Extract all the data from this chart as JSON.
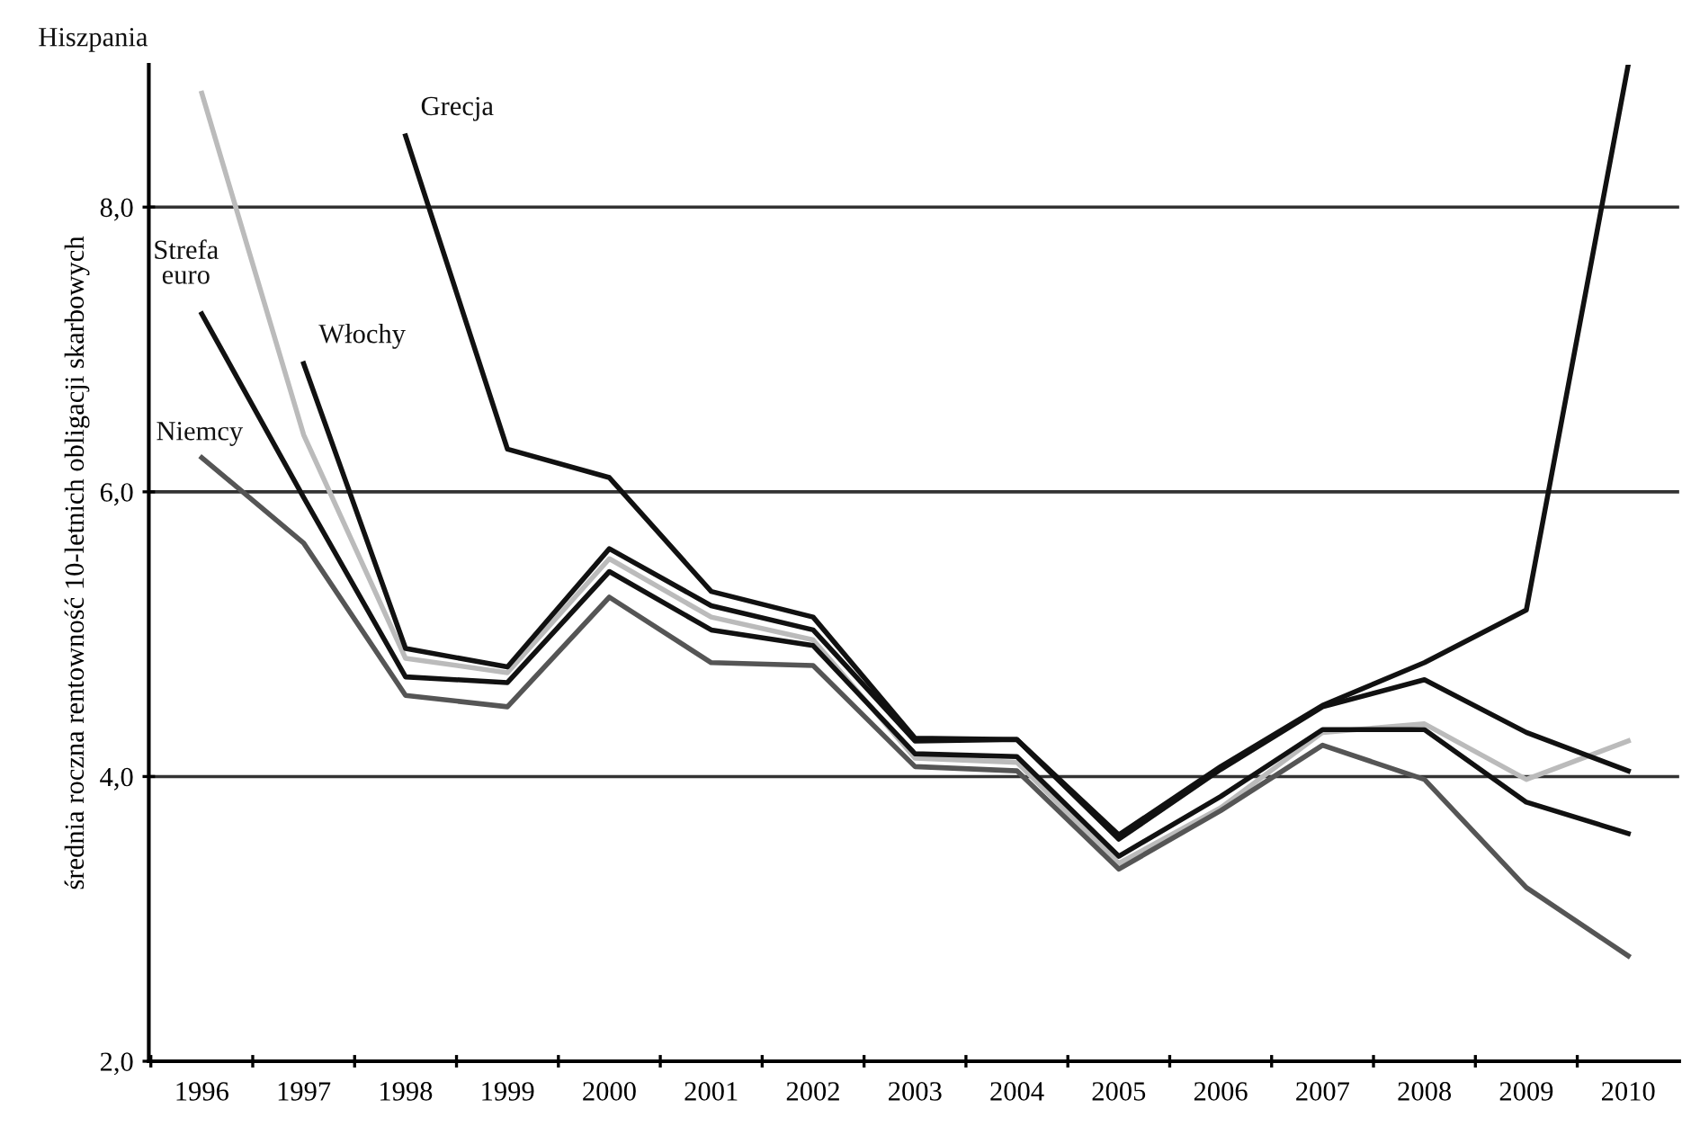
{
  "chart_data": {
    "type": "line",
    "ylabel": "średnia roczna rentowność 10-letnich obligacji skarbowych",
    "categories": [
      "1996",
      "1997",
      "1998",
      "1999",
      "2000",
      "2001",
      "2002",
      "2003",
      "2004",
      "2005",
      "2006",
      "2007",
      "2008",
      "2009",
      "2010"
    ],
    "ylim": [
      2,
      9
    ],
    "yticks": [
      {
        "value": 2,
        "label": "2,0"
      },
      {
        "value": 4,
        "label": "4,0"
      },
      {
        "value": 6,
        "label": "6,0"
      },
      {
        "value": 8,
        "label": "8,0"
      }
    ],
    "grid": "y",
    "legend": false,
    "marker": "none",
    "line_style": "solid",
    "series": [
      {
        "name": "Hiszpania",
        "color": "#bbbbbb",
        "values": [
          8.8,
          6.4,
          4.83,
          4.73,
          5.53,
          5.12,
          4.96,
          4.13,
          4.1,
          3.39,
          3.78,
          4.31,
          4.37,
          3.98,
          4.25
        ]
      },
      {
        "name": "Włochy",
        "color": "#111111",
        "values": [
          null,
          6.9,
          4.9,
          4.77,
          5.6,
          5.2,
          5.03,
          4.25,
          4.26,
          3.56,
          4.05,
          4.49,
          4.68,
          4.31,
          4.04
        ]
      },
      {
        "name": "Grecja",
        "color": "#111111",
        "values": [
          null,
          null,
          8.5,
          6.3,
          6.1,
          5.3,
          5.12,
          4.27,
          4.26,
          3.59,
          4.07,
          4.5,
          4.8,
          5.17,
          9.0
        ]
      },
      {
        "name": "Strefa euro",
        "color": "#111111",
        "values": [
          7.25,
          5.96,
          4.7,
          4.66,
          5.44,
          5.03,
          4.92,
          4.16,
          4.14,
          3.44,
          3.86,
          4.33,
          4.33,
          3.82,
          3.6
        ]
      },
      {
        "name": "Niemcy",
        "color": "#555555",
        "values": [
          6.24,
          5.64,
          4.57,
          4.49,
          5.26,
          4.8,
          4.78,
          4.07,
          4.04,
          3.35,
          3.76,
          4.22,
          3.98,
          3.22,
          2.74
        ]
      }
    ]
  }
}
